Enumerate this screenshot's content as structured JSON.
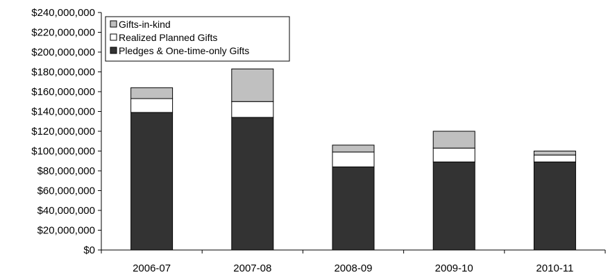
{
  "chart_data": {
    "type": "bar",
    "stacked": true,
    "title": "",
    "xlabel": "",
    "ylabel": "",
    "categories": [
      "2006-07",
      "2007-08",
      "2008-09",
      "2009-10",
      "2010-11"
    ],
    "series": [
      {
        "name": "Pledges & One-time-only Gifts",
        "values": [
          139000000,
          134000000,
          84000000,
          89000000,
          89000000
        ],
        "color": "#333333"
      },
      {
        "name": "Realized Planned Gifts",
        "values": [
          14000000,
          16000000,
          15000000,
          14000000,
          7000000
        ],
        "color": "#ffffff"
      },
      {
        "name": "Gifts-in-kind",
        "values": [
          11000000,
          33000000,
          7000000,
          17000000,
          4000000
        ],
        "color": "#c0c0c0"
      }
    ],
    "ylim": [
      0,
      240000000
    ],
    "y_ticks": [
      0,
      20000000,
      40000000,
      60000000,
      80000000,
      100000000,
      120000000,
      140000000,
      160000000,
      180000000,
      200000000,
      220000000,
      240000000
    ],
    "y_tick_labels": [
      "$0",
      "$20,000,000",
      "$40,000,000",
      "$60,000,000",
      "$80,000,000",
      "$100,000,000",
      "$120,000,000",
      "$140,000,000",
      "$160,000,000",
      "$180,000,000",
      "$200,000,000",
      "$220,000,000",
      "$240,000,000"
    ],
    "grid": false,
    "legend": {
      "placement": "top-left",
      "order": [
        "Gifts-in-kind",
        "Realized Planned Gifts",
        "Pledges & One-time-only Gifts"
      ]
    }
  }
}
